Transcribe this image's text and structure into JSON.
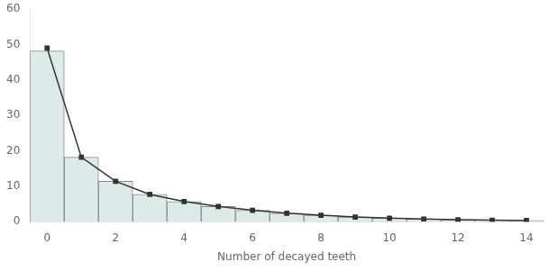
{
  "chart_data": {
    "type": "bar",
    "xlabel": "Number of decayed teeth",
    "x": [
      0,
      1,
      2,
      3,
      4,
      5,
      6,
      7,
      8,
      9,
      10,
      11,
      12,
      13,
      14
    ],
    "series": [
      {
        "type": "bar",
        "color": "#ddeaea",
        "values": [
          48.2,
          18.2,
          11.4,
          7.7,
          5.7,
          4.3,
          3.2,
          2.4,
          1.8,
          1.3,
          1.0,
          0.75,
          0.56,
          0.42,
          0.32
        ]
      },
      {
        "type": "line",
        "color": "#333333",
        "marker": "square",
        "values": [
          49.0,
          18.2,
          11.4,
          7.7,
          5.7,
          4.3,
          3.2,
          2.4,
          1.8,
          1.3,
          1.0,
          0.75,
          0.56,
          0.42,
          0.32
        ]
      }
    ],
    "xlim": [
      -0.5,
      14.5
    ],
    "xticks": [
      0,
      2,
      4,
      6,
      8,
      10,
      12,
      14
    ],
    "ylim": [
      0,
      60
    ],
    "yticks": [
      0,
      10,
      20,
      30,
      40,
      50,
      60
    ],
    "grid": false
  }
}
